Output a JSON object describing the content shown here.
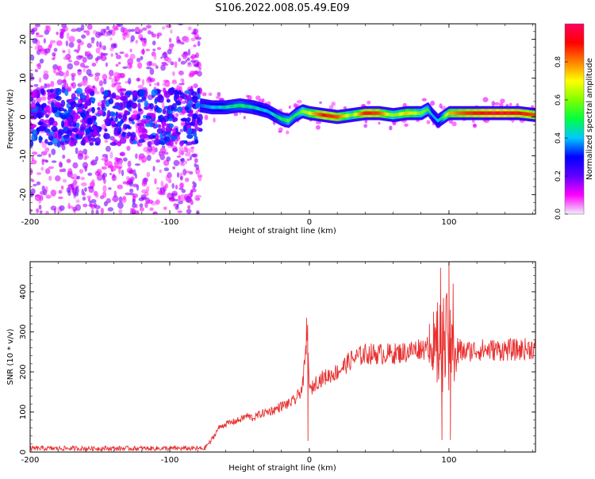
{
  "chart_data": [
    {
      "type": "heatmap",
      "title": "S106.2022.008.05.49.E09",
      "xlabel": "Height of straight line (km)",
      "ylabel": "Frequency (Hz)",
      "xlim": [
        -200,
        162
      ],
      "ylim": [
        -25,
        24
      ],
      "x_ticks": [
        -200,
        -100,
        0,
        100
      ],
      "y_ticks": [
        -20,
        -10,
        0,
        10,
        20
      ],
      "x_tick_labels": [
        "-200",
        "-100",
        "0",
        "100"
      ],
      "y_tick_labels": [
        "-20",
        "-10",
        "0",
        "10",
        "20"
      ],
      "colorbar": {
        "label": "Normalized spectral amplitude",
        "range": [
          0,
          1
        ],
        "ticks": [
          0.0,
          0.2,
          0.4,
          0.6,
          0.8
        ],
        "tick_labels": [
          "0.0",
          "0.2",
          "0.4",
          "0.6",
          "0.8"
        ],
        "colors": [
          "#f0f0f8",
          "#ff00ff",
          "#6000ff",
          "#0000ff",
          "#00c8ff",
          "#00ff40",
          "#80ff00",
          "#ffff00",
          "#ff8000",
          "#ff0000",
          "#ff0060"
        ]
      },
      "signal_line": {
        "x": [
          -78,
          -70,
          -60,
          -50,
          -40,
          -30,
          -20,
          -15,
          -10,
          -5,
          0,
          10,
          20,
          30,
          40,
          50,
          60,
          70,
          80,
          85,
          88,
          92,
          96,
          100,
          110,
          120,
          130,
          140,
          150,
          162
        ],
        "y": [
          3,
          2.5,
          2.5,
          3,
          2.5,
          1.5,
          -0.5,
          -1,
          0.5,
          1.5,
          1,
          0.5,
          0,
          0.5,
          1,
          1,
          0.5,
          1,
          1,
          2,
          0.5,
          -1,
          0,
          1,
          1,
          1,
          1,
          1,
          1,
          0.5
        ],
        "amplitude": [
          0.35,
          0.4,
          0.45,
          0.5,
          0.45,
          0.4,
          0.5,
          0.55,
          0.5,
          0.6,
          0.7,
          0.9,
          0.85,
          0.6,
          0.9,
          0.85,
          0.6,
          0.75,
          0.6,
          0.55,
          0.4,
          0.4,
          0.55,
          0.75,
          0.85,
          0.9,
          0.95,
          0.95,
          0.9,
          0.85
        ]
      },
      "noise_region": {
        "x_range": [
          -200,
          -78
        ],
        "amplitude": [
          0.05,
          0.2
        ]
      }
    },
    {
      "type": "line",
      "title": "",
      "xlabel": "Height of straight line (km)",
      "ylabel": "SNR (10 * v/v)",
      "xlim": [
        -200,
        162
      ],
      "ylim": [
        0,
        475
      ],
      "x_ticks": [
        -200,
        -100,
        0,
        100
      ],
      "y_ticks": [
        0,
        100,
        200,
        300,
        400
      ],
      "x_tick_labels": [
        "-200",
        "-100",
        "0",
        "100"
      ],
      "y_tick_labels": [
        "0",
        "100",
        "200",
        "300",
        "400"
      ],
      "line_color": "#e83030",
      "series": [
        {
          "name": "SNR",
          "x": [
            -200,
            -150,
            -100,
            -75,
            -70,
            -65,
            -60,
            -55,
            -50,
            -45,
            -40,
            -35,
            -30,
            -25,
            -20,
            -15,
            -10,
            -5,
            -3,
            -1,
            0,
            5,
            10,
            20,
            30,
            40,
            50,
            60,
            70,
            80,
            90,
            95,
            100,
            105,
            110,
            120,
            130,
            140,
            150,
            162
          ],
          "y": [
            5,
            5,
            5,
            5,
            30,
            60,
            70,
            75,
            80,
            90,
            85,
            95,
            100,
            105,
            115,
            120,
            130,
            160,
            230,
            300,
            150,
            175,
            185,
            200,
            230,
            245,
            245,
            245,
            250,
            260,
            255,
            270,
            260,
            255,
            250,
            255,
            255,
            255,
            255,
            260
          ],
          "spikes": [
            {
              "x": -2,
              "y": 335
            },
            {
              "x": -1,
              "y": 28
            },
            {
              "x": 94,
              "y": 460
            },
            {
              "x": 95,
              "y": 30
            },
            {
              "x": 100,
              "y": 470
            },
            {
              "x": 101,
              "y": 30
            },
            {
              "x": 103,
              "y": 420
            },
            {
              "x": 86,
              "y": 320
            },
            {
              "x": 89,
              "y": 350
            }
          ]
        }
      ]
    }
  ]
}
